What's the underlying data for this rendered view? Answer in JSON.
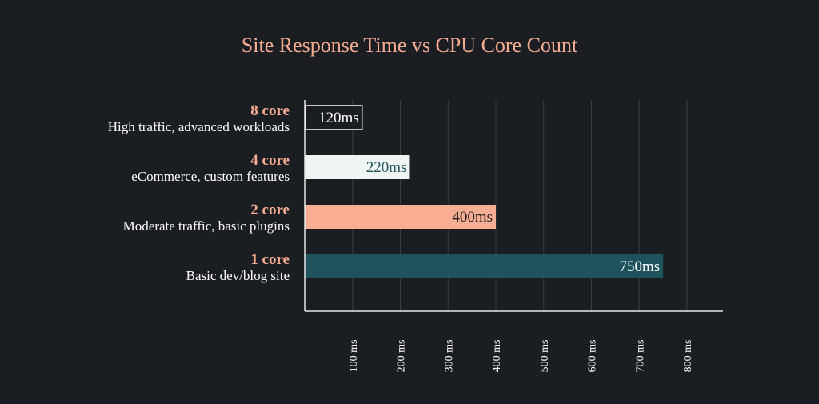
{
  "colors": {
    "background": "#1a1d21",
    "title": "#f7ac90",
    "category": "#f7ac90",
    "subtitle": "#ffffff",
    "axis": "#e6e6e6",
    "grid": "#3a3e44"
  },
  "chart_data": {
    "type": "bar",
    "orientation": "horizontal",
    "title": "Site Response Time vs CPU Core Count",
    "xlabel": "",
    "ylabel": "",
    "xlim": [
      0,
      870
    ],
    "grid": true,
    "categories": [
      "8 core",
      "4 core",
      "2 core",
      "1 core"
    ],
    "subtitles": [
      "High traffic, advanced workloads",
      "eCommerce, custom features",
      "Moderate traffic, basic plugins",
      "Basic dev/blog site"
    ],
    "values": [
      120,
      220,
      400,
      750
    ],
    "value_labels": [
      "120ms",
      "220ms",
      "400ms",
      "750ms"
    ],
    "bar_fill": [
      "#1a1d21",
      "#eef5f3",
      "#f9ae93",
      "#1e535e"
    ],
    "bar_stroke": [
      "#ffffff",
      "none",
      "none",
      "none"
    ],
    "label_color": [
      "#ffffff",
      "#1e535e",
      "#1a1d21",
      "#ffffff"
    ],
    "ticks": [
      100,
      200,
      300,
      400,
      500,
      600,
      700,
      800
    ],
    "tick_labels": [
      "100 ms",
      "200 ms",
      "300 ms",
      "400 ms",
      "500 ms",
      "600 ms",
      "700 ms",
      "800 ms"
    ]
  }
}
